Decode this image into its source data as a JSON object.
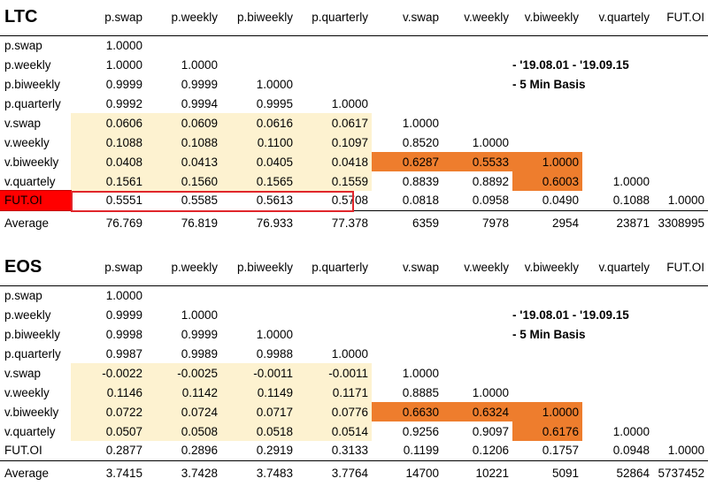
{
  "blocks": [
    {
      "title": "LTC",
      "columns": [
        "p.swap",
        "p.weekly",
        "p.biweekly",
        "p.quarterly",
        "v.swap",
        "v.weekly",
        "v.biweekly",
        "v.quartely",
        "FUT.OI"
      ],
      "rows": [
        {
          "label": "p.swap",
          "values": [
            "1.0000",
            "",
            "",
            "",
            "",
            "",
            "",
            "",
            ""
          ]
        },
        {
          "label": "p.weekly",
          "values": [
            "1.0000",
            "1.0000",
            "",
            "",
            "",
            "",
            "",
            "",
            ""
          ]
        },
        {
          "label": "p.biweekly",
          "values": [
            "0.9999",
            "0.9999",
            "1.0000",
            "",
            "",
            "",
            "",
            "",
            ""
          ]
        },
        {
          "label": "p.quarterly",
          "values": [
            "0.9992",
            "0.9994",
            "0.9995",
            "1.0000",
            "",
            "",
            "",
            "",
            ""
          ]
        },
        {
          "label": "v.swap",
          "values": [
            "0.0606",
            "0.0609",
            "0.0616",
            "0.0617",
            "1.0000",
            "",
            "",
            "",
            ""
          ]
        },
        {
          "label": "v.weekly",
          "values": [
            "0.1088",
            "0.1088",
            "0.1100",
            "0.1097",
            "0.8520",
            "1.0000",
            "",
            "",
            ""
          ]
        },
        {
          "label": "v.biweekly",
          "values": [
            "0.0408",
            "0.0413",
            "0.0405",
            "0.0418",
            "0.6287",
            "0.5533",
            "1.0000",
            "",
            ""
          ]
        },
        {
          "label": "v.quartely",
          "values": [
            "0.1561",
            "0.1560",
            "0.1565",
            "0.1559",
            "0.8839",
            "0.8892",
            "0.6003",
            "1.0000",
            ""
          ]
        },
        {
          "label": "FUT.OI",
          "values": [
            "0.5551",
            "0.5585",
            "0.5613",
            "0.5708",
            "0.0818",
            "0.0958",
            "0.0490",
            "0.1088",
            "1.0000"
          ]
        }
      ],
      "average": {
        "label": "Average",
        "values": [
          "76.769",
          "76.819",
          "76.933",
          "77.378",
          "6359",
          "7978",
          "2954",
          "23871",
          "3308995"
        ]
      },
      "notes": [
        "- '19.08.01 - '19.09.15",
        "- 5 Min Basis"
      ],
      "colors": {
        "pale": "#fdf2d0",
        "hot": "#ee7d2d",
        "fut_label_fill": "#ff0000",
        "highlight_box": "#e0262b"
      }
    },
    {
      "title": "EOS",
      "columns": [
        "p.swap",
        "p.weekly",
        "p.biweekly",
        "p.quarterly",
        "v.swap",
        "v.weekly",
        "v.biweekly",
        "v.quartely",
        "FUT.OI"
      ],
      "rows": [
        {
          "label": "p.swap",
          "values": [
            "1.0000",
            "",
            "",
            "",
            "",
            "",
            "",
            "",
            ""
          ]
        },
        {
          "label": "p.weekly",
          "values": [
            "0.9999",
            "1.0000",
            "",
            "",
            "",
            "",
            "",
            "",
            ""
          ]
        },
        {
          "label": "p.biweekly",
          "values": [
            "0.9998",
            "0.9999",
            "1.0000",
            "",
            "",
            "",
            "",
            "",
            ""
          ]
        },
        {
          "label": "p.quarterly",
          "values": [
            "0.9987",
            "0.9989",
            "0.9988",
            "1.0000",
            "",
            "",
            "",
            "",
            ""
          ]
        },
        {
          "label": "v.swap",
          "values": [
            "-0.0022",
            "-0.0025",
            "-0.0011",
            "-0.0011",
            "1.0000",
            "",
            "",
            "",
            ""
          ]
        },
        {
          "label": "v.weekly",
          "values": [
            "0.1146",
            "0.1142",
            "0.1149",
            "0.1171",
            "0.8885",
            "1.0000",
            "",
            "",
            ""
          ]
        },
        {
          "label": "v.biweekly",
          "values": [
            "0.0722",
            "0.0724",
            "0.0717",
            "0.0776",
            "0.6630",
            "0.6324",
            "1.0000",
            "",
            ""
          ]
        },
        {
          "label": "v.quartely",
          "values": [
            "0.0507",
            "0.0508",
            "0.0518",
            "0.0514",
            "0.9256",
            "0.9097",
            "0.6176",
            "1.0000",
            ""
          ]
        },
        {
          "label": "FUT.OI",
          "values": [
            "0.2877",
            "0.2896",
            "0.2919",
            "0.3133",
            "0.1199",
            "0.1206",
            "0.1757",
            "0.0948",
            "1.0000"
          ]
        }
      ],
      "average": {
        "label": "Average",
        "values": [
          "3.7415",
          "3.7428",
          "3.7483",
          "3.7764",
          "14700",
          "10221",
          "5091",
          "52864",
          "5737452"
        ]
      },
      "notes": [
        "- '19.08.01 - '19.09.15",
        "- 5 Min Basis"
      ],
      "colors": {
        "pale": "#fdf2d0",
        "hot": "#ee7d2d"
      }
    }
  ]
}
